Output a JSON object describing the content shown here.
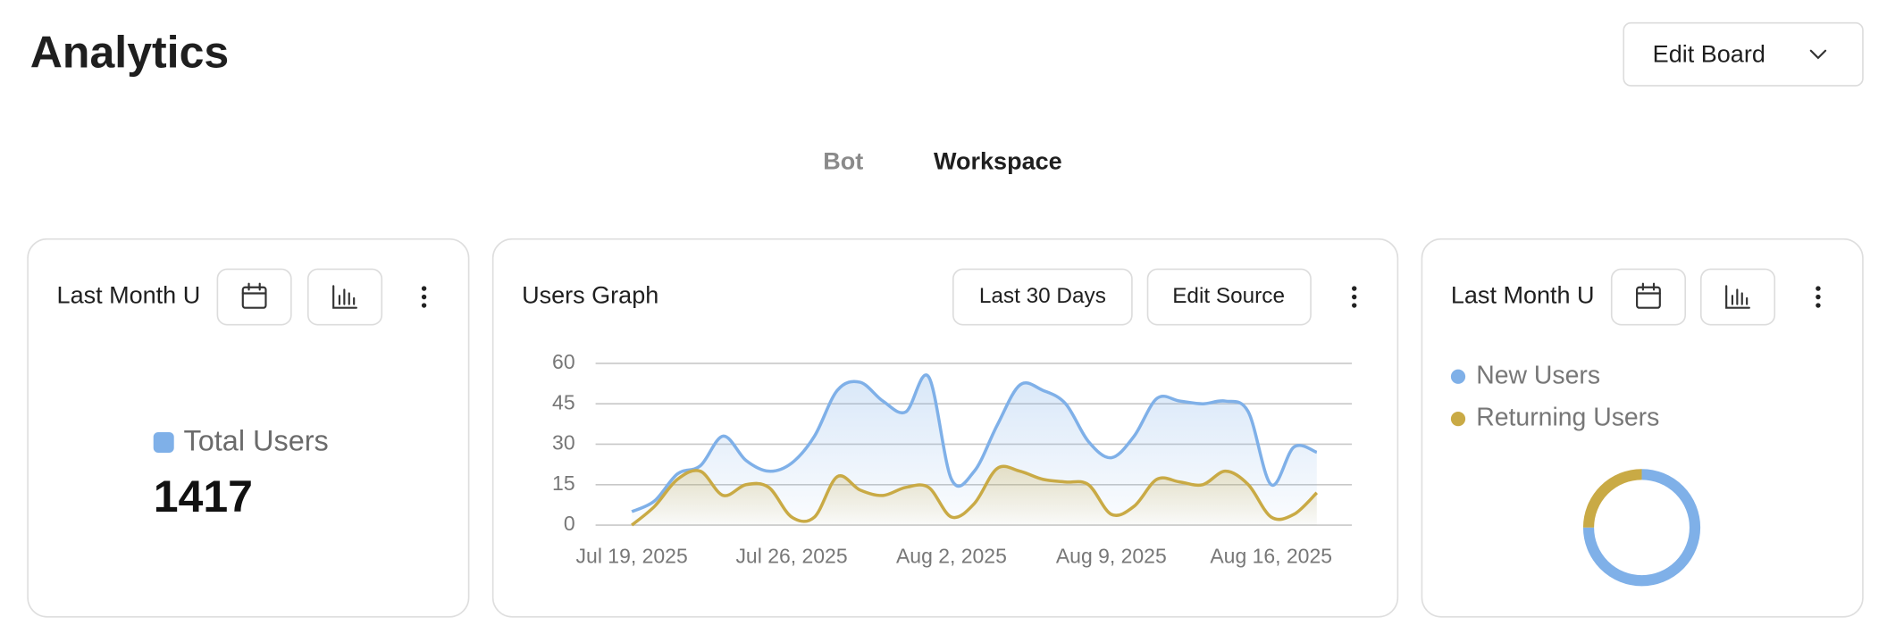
{
  "header": {
    "title": "Analytics",
    "button": "Edit Board"
  },
  "tabs": [
    "Bot",
    "Workspace"
  ],
  "cards": [
    {
      "title": "Last Month U",
      "legend": "Total Users",
      "value": 1417,
      "color": "#7fb0e8"
    },
    {
      "title": "Users Graph",
      "buttons": [
        "Last 30 Days",
        "Edit Source"
      ],
      "chart_data": {
        "type": "line",
        "x": [
          "Jul 19, 2025",
          "Jul 20, 2025",
          "Jul 21, 2025",
          "Jul 22, 2025",
          "Jul 23, 2025",
          "Jul 24, 2025",
          "Jul 25, 2025",
          "Jul 26, 2025",
          "Jul 27, 2025",
          "Jul 28, 2025",
          "Jul 29, 2025",
          "Jul 30, 2025",
          "Jul 31, 2025",
          "Aug 1, 2025",
          "Aug 2, 2025",
          "Aug 3, 2025",
          "Aug 4, 2025",
          "Aug 5, 2025",
          "Aug 6, 2025",
          "Aug 7, 2025",
          "Aug 8, 2025",
          "Aug 9, 2025",
          "Aug 10, 2025",
          "Aug 11, 2025",
          "Aug 12, 2025",
          "Aug 13, 2025",
          "Aug 14, 2025",
          "Aug 15, 2025",
          "Aug 16, 2025",
          "Aug 17, 2025",
          "Aug 18, 2025"
        ],
        "xticks": [
          "Jul 19, 2025",
          "Jul 26, 2025",
          "Aug 2, 2025",
          "Aug 9, 2025",
          "Aug 16, 2025"
        ],
        "series": [
          {
            "name": "New Users",
            "color": "#7fb0e8",
            "values": [
              5,
              9,
              19,
              22,
              33,
              24,
              20,
              23,
              33,
              50,
              53,
              46,
              42,
              55,
              17,
              20,
              37,
              52,
              50,
              45,
              31,
              25,
              33,
              47,
              46,
              45,
              46,
              42,
              15,
              29,
              27
            ]
          },
          {
            "name": "Returning Users",
            "color": "#c9aa45",
            "values": [
              0,
              7,
              17,
              20,
              11,
              15,
              14,
              3,
              3,
              18,
              13,
              11,
              14,
              14,
              3,
              8,
              21,
              20,
              17,
              16,
              15,
              4,
              7,
              17,
              16,
              15,
              20,
              15,
              3,
              4,
              12
            ]
          }
        ],
        "ylim": [
          0,
          60
        ],
        "yticks": [
          0,
          15,
          30,
          45,
          60
        ],
        "grid": true
      }
    },
    {
      "title": "Last Month U",
      "chart_data": {
        "type": "donut",
        "categories": [
          "New Users",
          "Returning Users"
        ],
        "values": [
          75,
          25
        ],
        "colors": [
          "#7fb0e8",
          "#c9aa45"
        ]
      }
    }
  ]
}
